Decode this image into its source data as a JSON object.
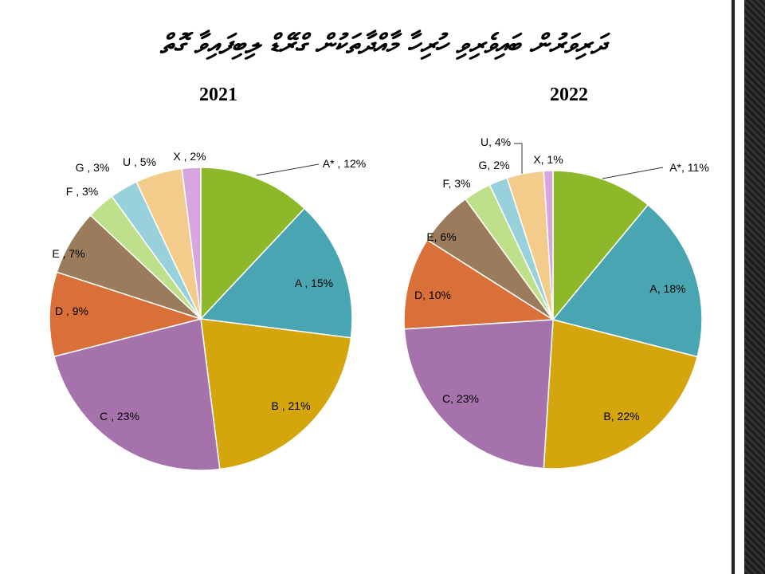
{
  "title": "ދަރިވަރުން ބައިވެރިވި ހުރިހާ މާއްދާތަކުން ގްރޭޑް ލިބިފައިވާ ގޮތް",
  "chart_data": [
    {
      "type": "pie",
      "title": "2021",
      "categories": [
        "A*",
        "A",
        "B",
        "C",
        "D",
        "E",
        "F",
        "G",
        "U",
        "X"
      ],
      "values": [
        12,
        15,
        21,
        23,
        9,
        7,
        3,
        3,
        5,
        2
      ],
      "labels": [
        "A* , 12%",
        "A , 15%",
        "B , 21%",
        "C , 23%",
        "D , 9%",
        "E , 7%",
        "F , 3%",
        "G , 3%",
        "U , 5%",
        "X , 2%"
      ]
    },
    {
      "type": "pie",
      "title": "2022",
      "categories": [
        "A*",
        "A",
        "B",
        "C",
        "D",
        "E",
        "F",
        "G",
        "U",
        "X"
      ],
      "values": [
        11,
        18,
        22,
        23,
        10,
        6,
        3,
        2,
        4,
        1
      ],
      "labels": [
        "A*, 11%",
        "A, 18%",
        "B, 22%",
        "C, 23%",
        "D, 10%",
        "E, 6%",
        "F, 3%",
        "G, 2%",
        "U, 4%",
        "X, 1%"
      ]
    }
  ],
  "colors": [
    "#8db82a",
    "#4aa5b3",
    "#d4a50c",
    "#a672ab",
    "#d9703a",
    "#9a7b5c",
    "#bfe08a",
    "#98d0dc",
    "#f3cc8c",
    "#d7a6df"
  ]
}
